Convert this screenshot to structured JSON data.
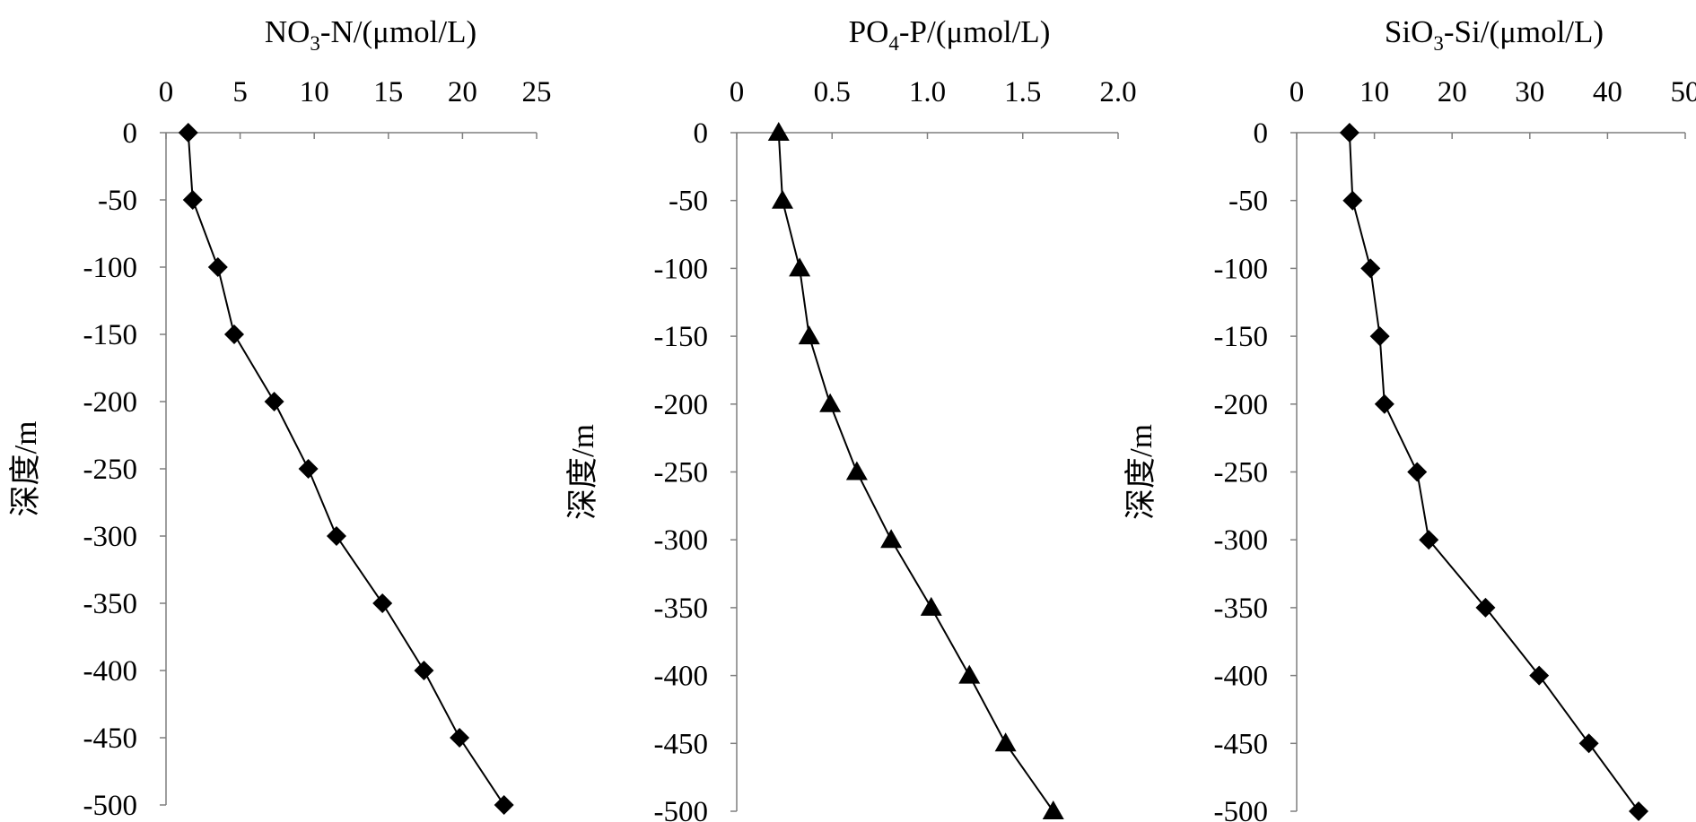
{
  "chart_data": [
    {
      "type": "line",
      "title_parts": {
        "main": "NO",
        "sub": "3",
        "rest": "-N/(μmol/L)"
      },
      "xlabel": "NO3-N/(μmol/L)",
      "ylabel": "深度/m",
      "xlim": [
        0,
        25
      ],
      "ylim": [
        -500,
        0
      ],
      "x_ticks": [
        0,
        5,
        10,
        15,
        20,
        25
      ],
      "x_tick_labels": [
        "0",
        "5",
        "10",
        "15",
        "20",
        "25"
      ],
      "y_ticks": [
        0,
        -50,
        -100,
        -150,
        -200,
        -250,
        -300,
        -350,
        -400,
        -450,
        -500
      ],
      "y_tick_labels": [
        "0",
        "-50",
        "-100",
        "-150",
        "-200",
        "-250",
        "-300",
        "-350",
        "-400",
        "-450",
        "-500"
      ],
      "marker": "diamond",
      "axis_position": "top",
      "grid": false,
      "series": [
        {
          "x": [
            1.5,
            1.8,
            3.5,
            4.6,
            7.3,
            9.6,
            11.5,
            14.6,
            17.4,
            19.8,
            22.8
          ],
          "y": [
            0,
            -50,
            -100,
            -150,
            -200,
            -250,
            -300,
            -350,
            -400,
            -450,
            -500
          ]
        }
      ]
    },
    {
      "type": "line",
      "title_parts": {
        "main": "PO",
        "sub": "4",
        "rest": "-P/(μmol/L)"
      },
      "xlabel": "PO4-P/(μmol/L)",
      "ylabel": "深度/m",
      "xlim": [
        0,
        2.0
      ],
      "ylim": [
        -500,
        0
      ],
      "x_ticks": [
        0,
        0.5,
        1.0,
        1.5,
        2.0
      ],
      "x_tick_labels": [
        "0",
        "0.5",
        "1.0",
        "1.5",
        "2.0"
      ],
      "y_ticks": [
        0,
        -50,
        -100,
        -150,
        -200,
        -250,
        -300,
        -350,
        -400,
        -450,
        -500
      ],
      "y_tick_labels": [
        "0",
        "-50",
        "-100",
        "-150",
        "-200",
        "-250",
        "-300",
        "-350",
        "-400",
        "-450",
        "-500"
      ],
      "marker": "triangle",
      "axis_position": "top",
      "grid": false,
      "series": [
        {
          "x": [
            0.22,
            0.24,
            0.33,
            0.38,
            0.49,
            0.63,
            0.81,
            1.02,
            1.22,
            1.41,
            1.66
          ],
          "y": [
            0,
            -50,
            -100,
            -150,
            -200,
            -250,
            -300,
            -350,
            -400,
            -450,
            -500
          ]
        }
      ]
    },
    {
      "type": "line",
      "title_parts": {
        "main": "SiO",
        "sub": "3",
        "rest": "-Si/(μmol/L)"
      },
      "xlabel": "SiO3-Si/(μmol/L)",
      "ylabel": "深度/m",
      "xlim": [
        0,
        50
      ],
      "ylim": [
        -500,
        0
      ],
      "x_ticks": [
        0,
        10,
        20,
        30,
        40,
        50
      ],
      "x_tick_labels": [
        "0",
        "10",
        "20",
        "30",
        "40",
        "50"
      ],
      "y_ticks": [
        0,
        -50,
        -100,
        -150,
        -200,
        -250,
        -300,
        -350,
        -400,
        -450,
        -500
      ],
      "y_tick_labels": [
        "0",
        "-50",
        "-100",
        "-150",
        "-200",
        "-250",
        "-300",
        "-350",
        "-400",
        "-450",
        "-500"
      ],
      "marker": "diamond",
      "axis_position": "top",
      "grid": false,
      "series": [
        {
          "x": [
            6.8,
            7.2,
            9.5,
            10.7,
            11.3,
            15.5,
            17.0,
            24.3,
            31.2,
            37.6,
            44.0
          ],
          "y": [
            0,
            -50,
            -100,
            -150,
            -200,
            -250,
            -300,
            -350,
            -400,
            -450,
            -500
          ]
        }
      ]
    }
  ],
  "colors": {
    "axis": "#7f7f7f",
    "line": "#000000",
    "marker": "#000000",
    "text": "#000000"
  }
}
